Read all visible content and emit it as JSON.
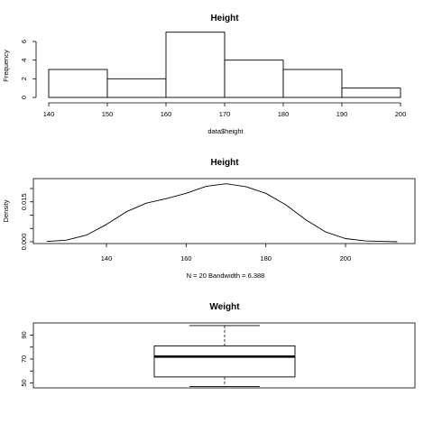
{
  "chart_data": [
    {
      "type": "bar",
      "title": "Height",
      "xlabel": "data$height",
      "ylabel": "Frequency",
      "bin_edges": [
        140,
        150,
        160,
        170,
        180,
        190,
        200
      ],
      "values": [
        3,
        2,
        7,
        4,
        3,
        1
      ],
      "xlim": [
        140,
        200
      ],
      "ylim": [
        0,
        7
      ],
      "xticks": [
        "140",
        "150",
        "160",
        "170",
        "180",
        "190",
        "200"
      ],
      "yticks": [
        "0",
        "2",
        "4",
        "6"
      ],
      "grid": false
    },
    {
      "type": "line",
      "title": "Height",
      "xlabel": "N = 20   Bandwidth = 6.388",
      "ylabel": "Density",
      "x": [
        125,
        130,
        135,
        140,
        145,
        150,
        155,
        160,
        165,
        170,
        175,
        180,
        185,
        190,
        195,
        200,
        205,
        210,
        213
      ],
      "y": [
        0.0001,
        0.0006,
        0.0025,
        0.0065,
        0.0113,
        0.0145,
        0.0162,
        0.0182,
        0.0208,
        0.0218,
        0.0207,
        0.0182,
        0.0139,
        0.0083,
        0.0037,
        0.0012,
        0.0003,
        0.0001,
        0.0
      ],
      "xlim": [
        122,
        216
      ],
      "ylim": [
        0,
        0.0225
      ],
      "xticks": [
        "140",
        "160",
        "180",
        "200"
      ],
      "yticks": [
        "0.000",
        "0.015"
      ],
      "grid": false
    },
    {
      "type": "box",
      "title": "Weight",
      "min": 47,
      "q1": 55,
      "median": 72,
      "q3": 81,
      "max": 98,
      "ylim": [
        45,
        100
      ],
      "yticks": [
        "50",
        "70",
        "90"
      ],
      "grid": false
    }
  ]
}
